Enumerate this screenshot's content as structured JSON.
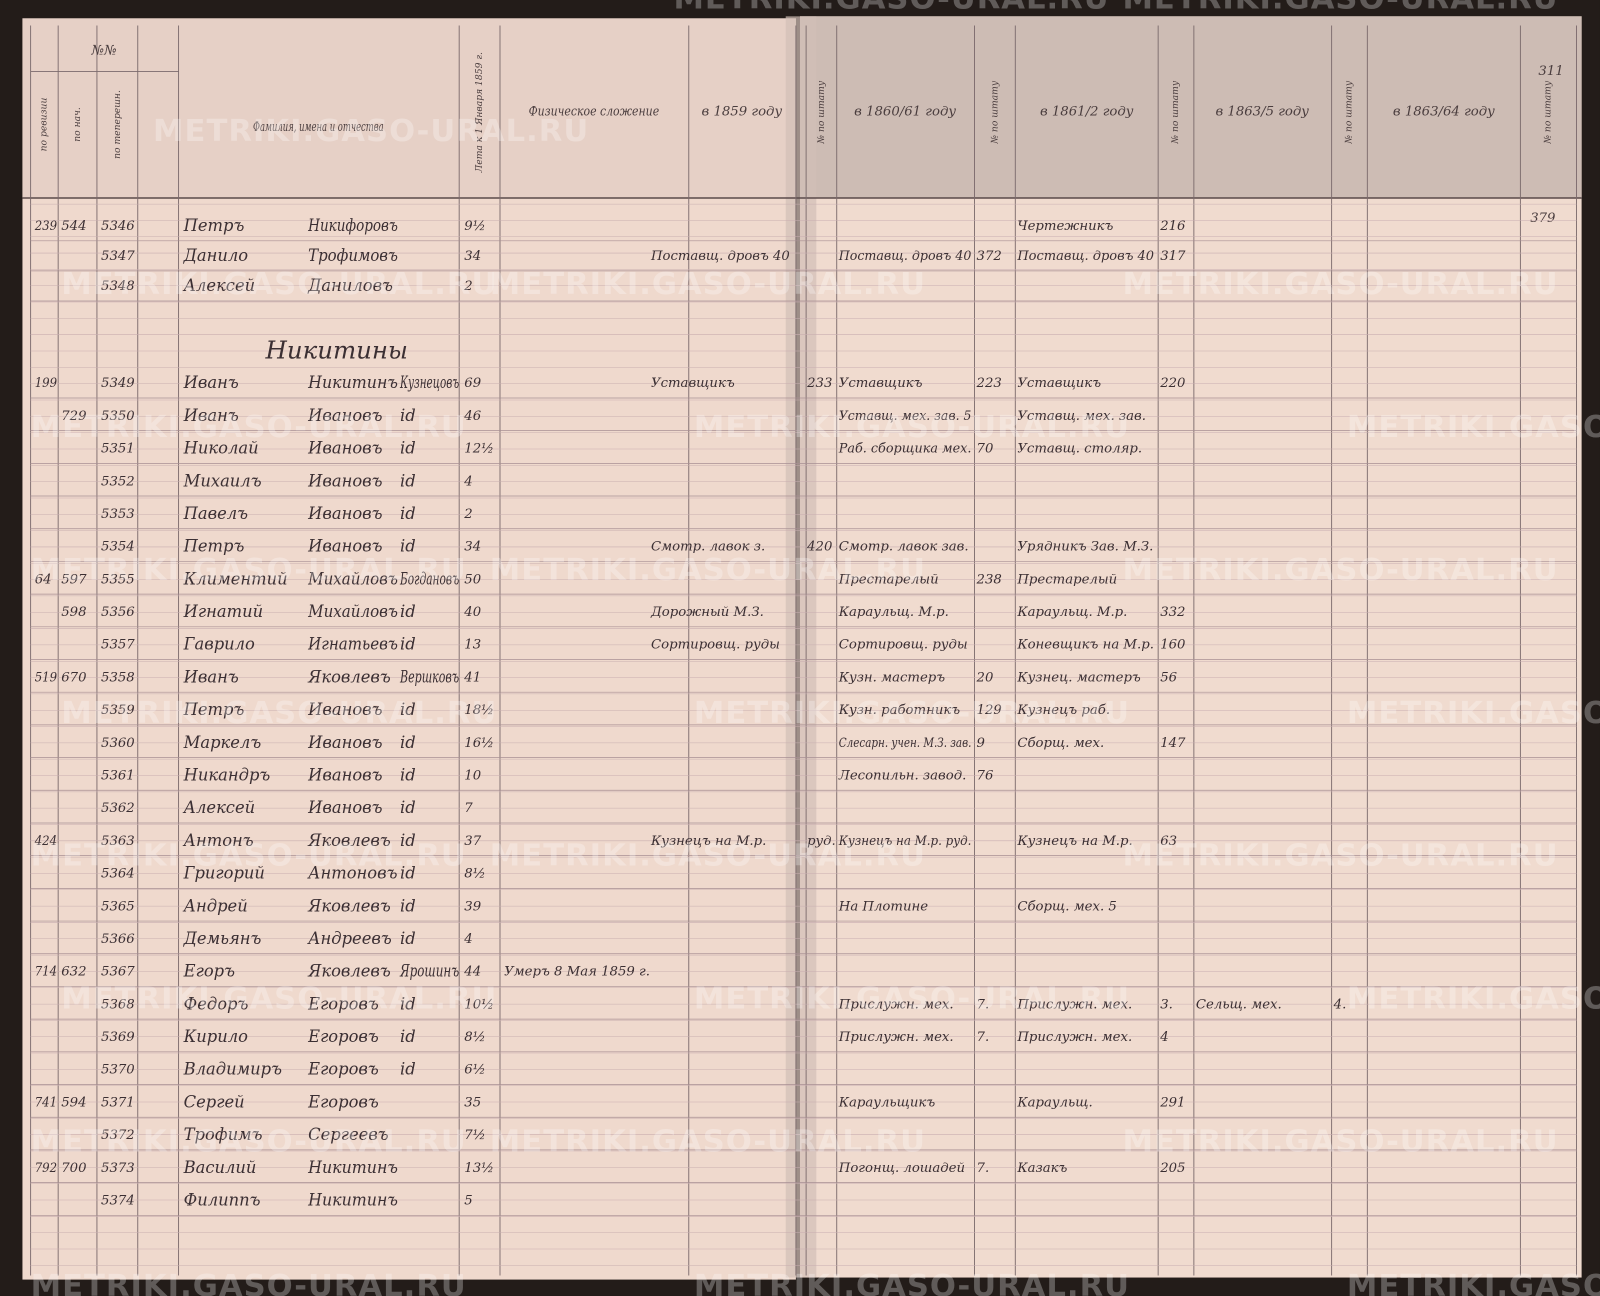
{
  "watermark": "METRIKI.GASO-URAL.RU",
  "page_number": "311",
  "margin_note": "379",
  "header": {
    "numbers": "№№",
    "rev": "по ревизии",
    "nach": "по нач.",
    "num": "по теперешн.",
    "names": "Фамилия, имена и отчества",
    "age": "Лета к 1 Января 1859 г.",
    "physical": "Физическое сложение",
    "y1859": "в 1859 году",
    "n1859": "№ по штату",
    "y1860": "в 1860/61 году",
    "n1860": "№ по штату",
    "y1861": "в 1861/2 году",
    "n1861": "№ по штату",
    "y1863": "в 1863/5 году",
    "n1863": "№ по штату",
    "y1864": "в 1863/64 году",
    "n1864": "№ по штату"
  },
  "section_heading": "Никитины",
  "rows": [
    {
      "rev": "239",
      "nach": "544",
      "num": "5346",
      "first": "Петръ",
      "patronymic": "Никифоровъ",
      "age": "9½",
      "y1861": "Чертежникъ",
      "n1861": "216"
    },
    {
      "num": "5347",
      "first": "Данило",
      "patronymic": "Трофимовъ",
      "age": "34",
      "y1859": "Поставщ. дровъ 40",
      "y1860": "Поставщ. дровъ 40",
      "n1860": "372",
      "y1861": "Поставщ. дровъ 40",
      "n1861": "317"
    },
    {
      "num": "5348",
      "first": "Алексей",
      "patronymic": "Даниловъ",
      "age": "2"
    },
    {
      "rev": "199",
      "num": "5349",
      "first": "Иванъ",
      "patronymic": "Никитинъ",
      "surname": "Кузнецовъ",
      "age": "69",
      "y1859": "Уставщикъ",
      "n1859": "233",
      "y1860": "Уставщикъ",
      "n1860": "223",
      "y1861": "Уставщикъ",
      "n1861": "220"
    },
    {
      "nach": "729",
      "num": "5350",
      "first": "Иванъ",
      "patronymic": "Ивановъ",
      "surname": "id",
      "age": "46",
      "y1860": "Уставщ. мех. зав. 5",
      "y1861": "Уставщ. мех. зав."
    },
    {
      "num": "5351",
      "first": "Николай",
      "patronymic": "Ивановъ",
      "surname": "id",
      "age": "12½",
      "y1860": "Раб. сборщика мех.",
      "n1860": "70",
      "y1861": "Уставщ. столяр."
    },
    {
      "num": "5352",
      "first": "Михаилъ",
      "patronymic": "Ивановъ",
      "surname": "id",
      "age": "4"
    },
    {
      "num": "5353",
      "first": "Павелъ",
      "patronymic": "Ивановъ",
      "surname": "id",
      "age": "2"
    },
    {
      "num": "5354",
      "first": "Петръ",
      "patronymic": "Ивановъ",
      "surname": "id",
      "age": "34",
      "y1859": "Смотр. лавок з.",
      "n1859": "420",
      "y1860": "Смотр. лавок зав.",
      "y1861": "Урядникъ Зав. М.З."
    },
    {
      "rev": "64",
      "nach": "597",
      "num": "5355",
      "first": "Климентий",
      "patronymic": "Михайловъ",
      "surname": "Богдановъ",
      "age": "50",
      "y1860": "Престарелый",
      "n1860": "238",
      "y1861": "Престарелый"
    },
    {
      "nach": "598",
      "num": "5356",
      "first": "Игнатий",
      "patronymic": "Михайловъ",
      "surname": "id",
      "age": "40",
      "y1859": "Дорожный М.З.",
      "y1860": "Караульщ. М.р.",
      "y1861": "Караульщ. М.р.",
      "n1861": "332"
    },
    {
      "num": "5357",
      "first": "Гаврило",
      "patronymic": "Игнатьевъ",
      "surname": "id",
      "age": "13",
      "y1859": "Сортировщ. руды",
      "y1860": "Сортировщ. руды",
      "y1861": "Коневщикъ на М.р.",
      "n1861": "160"
    },
    {
      "rev": "519",
      "nach": "670",
      "num": "5358",
      "first": "Иванъ",
      "patronymic": "Яковлевъ",
      "surname": "Вершковъ",
      "age": "41",
      "y1860": "Кузн. мастеръ",
      "n1860": "20",
      "y1861": "Кузнец. мастеръ",
      "n1861": "56"
    },
    {
      "num": "5359",
      "first": "Петръ",
      "patronymic": "Ивановъ",
      "surname": "id",
      "age": "18½",
      "y1860": "Кузн. работникъ",
      "n1860": "129",
      "y1861": "Кузнецъ раб."
    },
    {
      "num": "5360",
      "first": "Маркелъ",
      "patronymic": "Ивановъ",
      "surname": "id",
      "age": "16½",
      "y1860": "Слесарн. учен. М.З. зав.",
      "n1860": "9",
      "y1861": "Сборщ. мех.",
      "n1861": "147"
    },
    {
      "num": "5361",
      "first": "Никандръ",
      "patronymic": "Ивановъ",
      "surname": "id",
      "age": "10",
      "y1860": "Лесопильн. завод.",
      "n1860": "76"
    },
    {
      "num": "5362",
      "first": "Алексей",
      "patronymic": "Ивановъ",
      "surname": "id",
      "age": "7"
    },
    {
      "rev": "424",
      "num": "5363",
      "first": "Антонъ",
      "patronymic": "Яковлевъ",
      "surname": "id",
      "age": "37",
      "y1859": "Кузнецъ на М.р.",
      "n1859": "руд.",
      "y1860": "Кузнецъ на М.р. руд.",
      "y1861": "Кузнецъ на М.р.",
      "n1861": "63"
    },
    {
      "num": "5364",
      "first": "Григорий",
      "patronymic": "Антоновъ",
      "surname": "id",
      "age": "8½"
    },
    {
      "num": "5365",
      "first": "Андрей",
      "patronymic": "Яковлевъ",
      "surname": "id",
      "age": "39",
      "y1860": "На Плотине",
      "y1861": "Сборщ. мех. 5"
    },
    {
      "num": "5366",
      "first": "Демьянъ",
      "patronymic": "Андреевъ",
      "surname": "id",
      "age": "4"
    },
    {
      "rev": "714",
      "nach": "632",
      "num": "5367",
      "first": "Егоръ",
      "patronymic": "Яковлевъ",
      "surname": "Ярошинъ",
      "age": "44",
      "physical": "Умеръ 8 Мая 1859 г."
    },
    {
      "num": "5368",
      "first": "Федоръ",
      "patronymic": "Егоровъ",
      "surname": "id",
      "age": "10½",
      "y1860": "Прислужн. мех.",
      "n1860": "7.",
      "y1861": "Прислужн. мех.",
      "n1861": "3.",
      "y1863": "Сельщ. мех.",
      "n1863": "4."
    },
    {
      "num": "5369",
      "first": "Кирило",
      "patronymic": "Егоровъ",
      "surname": "id",
      "age": "8½",
      "y1860": "Прислужн. мех.",
      "n1860": "7.",
      "y1861": "Прислужн. мех.",
      "n1861": "4"
    },
    {
      "num": "5370",
      "first": "Владимиръ",
      "patronymic": "Егоровъ",
      "surname": "id",
      "age": "6½"
    },
    {
      "rev": "741",
      "nach": "594",
      "num": "5371",
      "first": "Сергей",
      "patronymic": "Егоровъ",
      "age": "35",
      "y1860": "Караульщикъ",
      "y1861": "Караульщ.",
      "n1861": "291"
    },
    {
      "num": "5372",
      "first": "Трофимъ",
      "patronymic": "Сергеевъ",
      "age": "7½"
    },
    {
      "rev": "792",
      "nach": "700",
      "num": "5373",
      "first": "Василий",
      "patronymic": "Никитинъ",
      "age": "13½",
      "y1860": "Погонщ. лошадей",
      "n1860": "7.",
      "y1861": "Казакъ",
      "n1861": "205"
    },
    {
      "num": "5374",
      "first": "Филиппъ",
      "patronymic": "Никитинъ",
      "age": "5"
    }
  ]
}
